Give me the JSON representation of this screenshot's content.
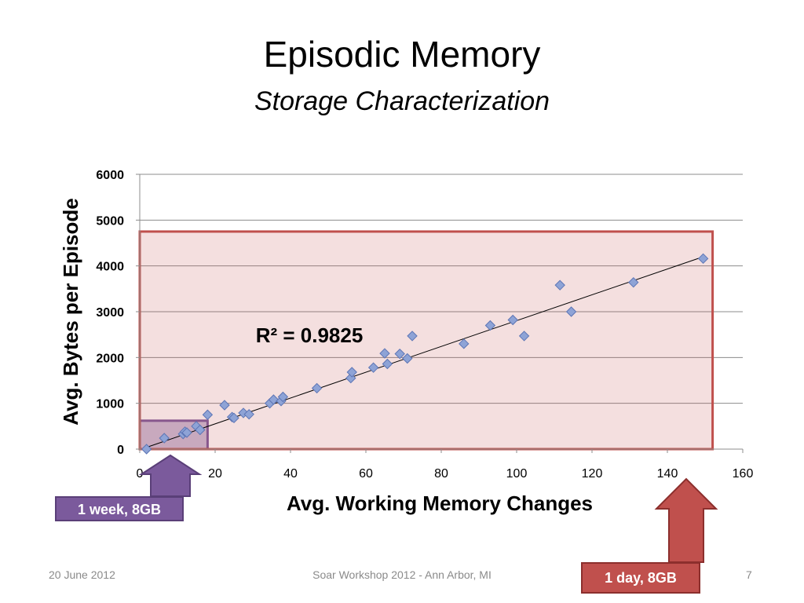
{
  "slide": {
    "title": "Episodic Memory",
    "subtitle": "Storage Characterization",
    "footer_date": "20 June 2012",
    "footer_event": "Soar Workshop 2012 - Ann Arbor, MI",
    "page_number": "7"
  },
  "callouts": {
    "week": {
      "label": "1 week, 8GB",
      "color": "#7b5a9c"
    },
    "day": {
      "label": "1 day, 8GB",
      "color": "#c0504d"
    }
  },
  "chart_data": {
    "type": "scatter",
    "xlabel": "Avg. Working Memory Changes",
    "ylabel": "Avg. Bytes per Episode",
    "xlim": [
      0,
      160
    ],
    "ylim": [
      0,
      6000
    ],
    "x_ticks": [
      0,
      20,
      40,
      60,
      80,
      100,
      120,
      140,
      160
    ],
    "y_ticks": [
      0,
      1000,
      2000,
      3000,
      4000,
      5000,
      6000
    ],
    "grid": "horizontal",
    "marker_color": "#8ea3d6",
    "annotation": "R² = 0.9825",
    "trendline": {
      "x": [
        1.5,
        149.5
      ],
      "y": [
        30,
        4200
      ]
    },
    "regions": [
      {
        "name": "1 week, 8GB",
        "x": [
          0,
          18
        ],
        "y": [
          0,
          620
        ],
        "color": "#7b5a9c"
      },
      {
        "name": "1 day, 8GB",
        "x": [
          0,
          152
        ],
        "y": [
          0,
          4750
        ],
        "color": "#c0504d"
      }
    ],
    "points": [
      {
        "x": 1.8,
        "y": 0
      },
      {
        "x": 6.5,
        "y": 240
      },
      {
        "x": 11.5,
        "y": 330
      },
      {
        "x": 12,
        "y": 380
      },
      {
        "x": 12.5,
        "y": 360
      },
      {
        "x": 15,
        "y": 500
      },
      {
        "x": 16,
        "y": 420
      },
      {
        "x": 18,
        "y": 750
      },
      {
        "x": 22.5,
        "y": 960
      },
      {
        "x": 24.5,
        "y": 700
      },
      {
        "x": 25,
        "y": 680
      },
      {
        "x": 27.5,
        "y": 790
      },
      {
        "x": 29,
        "y": 760
      },
      {
        "x": 34.5,
        "y": 1000
      },
      {
        "x": 35.5,
        "y": 1080
      },
      {
        "x": 37.5,
        "y": 1050
      },
      {
        "x": 38,
        "y": 1140
      },
      {
        "x": 47,
        "y": 1330
      },
      {
        "x": 56,
        "y": 1550
      },
      {
        "x": 56.3,
        "y": 1680
      },
      {
        "x": 62,
        "y": 1780
      },
      {
        "x": 65,
        "y": 2090
      },
      {
        "x": 65.7,
        "y": 1860
      },
      {
        "x": 69,
        "y": 2080
      },
      {
        "x": 71,
        "y": 1980
      },
      {
        "x": 72.3,
        "y": 2470
      },
      {
        "x": 86,
        "y": 2300
      },
      {
        "x": 93,
        "y": 2700
      },
      {
        "x": 99,
        "y": 2820
      },
      {
        "x": 102,
        "y": 2470
      },
      {
        "x": 111.5,
        "y": 3580
      },
      {
        "x": 114.5,
        "y": 3000
      },
      {
        "x": 131,
        "y": 3640
      },
      {
        "x": 149.5,
        "y": 4160
      }
    ]
  }
}
